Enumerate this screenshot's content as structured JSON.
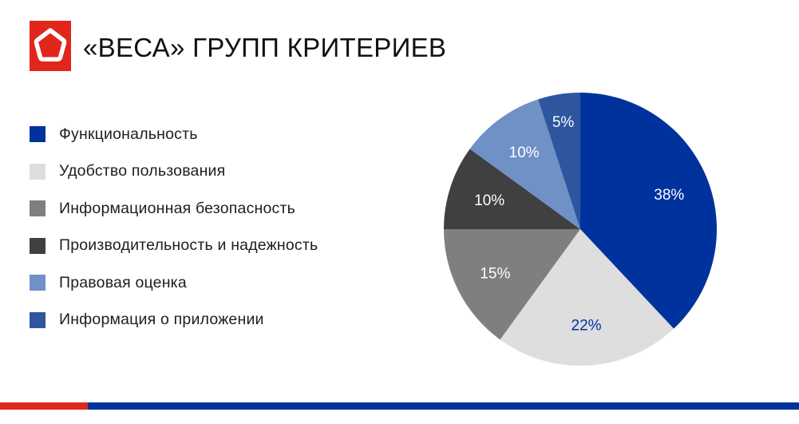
{
  "header": {
    "logo_icon": "pentagon-logo-icon",
    "logo_color": "#e1261c",
    "title": "«ВЕСА» ГРУПП КРИТЕРИЕВ"
  },
  "legend": {
    "items": [
      {
        "label": "Функциональность",
        "color": "#00329e"
      },
      {
        "label": "Удобство пользования",
        "color": "#dedede"
      },
      {
        "label": "Информационная безопасность",
        "color": "#7f7f7f"
      },
      {
        "label": "Производительность и надежность",
        "color": "#404040"
      },
      {
        "label": "Правовая оценка",
        "color": "#7091c6"
      },
      {
        "label": "Информация о приложении",
        "color": "#2d569e"
      }
    ]
  },
  "chart_data": {
    "type": "pie",
    "title": "«ВЕСА» ГРУПП КРИТЕРИЕВ",
    "categories": [
      "Функциональность",
      "Удобство пользования",
      "Информационная безопасность",
      "Производительность и надежность",
      "Правовая оценка",
      "Информация о приложении"
    ],
    "values": [
      38,
      22,
      15,
      10,
      10,
      5
    ],
    "labels": [
      "38%",
      "22%",
      "15%",
      "10%",
      "10%",
      "5%"
    ],
    "colors": [
      "#00329e",
      "#dedede",
      "#7f7f7f",
      "#404040",
      "#7091c6",
      "#2d569e"
    ],
    "label_colors": [
      "#ffffff",
      "#00329e",
      "#ffffff",
      "#ffffff",
      "#ffffff",
      "#ffffff"
    ],
    "start_angle": "12 o'clock",
    "direction": "clockwise",
    "legend_position": "left"
  },
  "footer": {
    "bar_colors": [
      "#e1261c",
      "#00329e"
    ]
  }
}
